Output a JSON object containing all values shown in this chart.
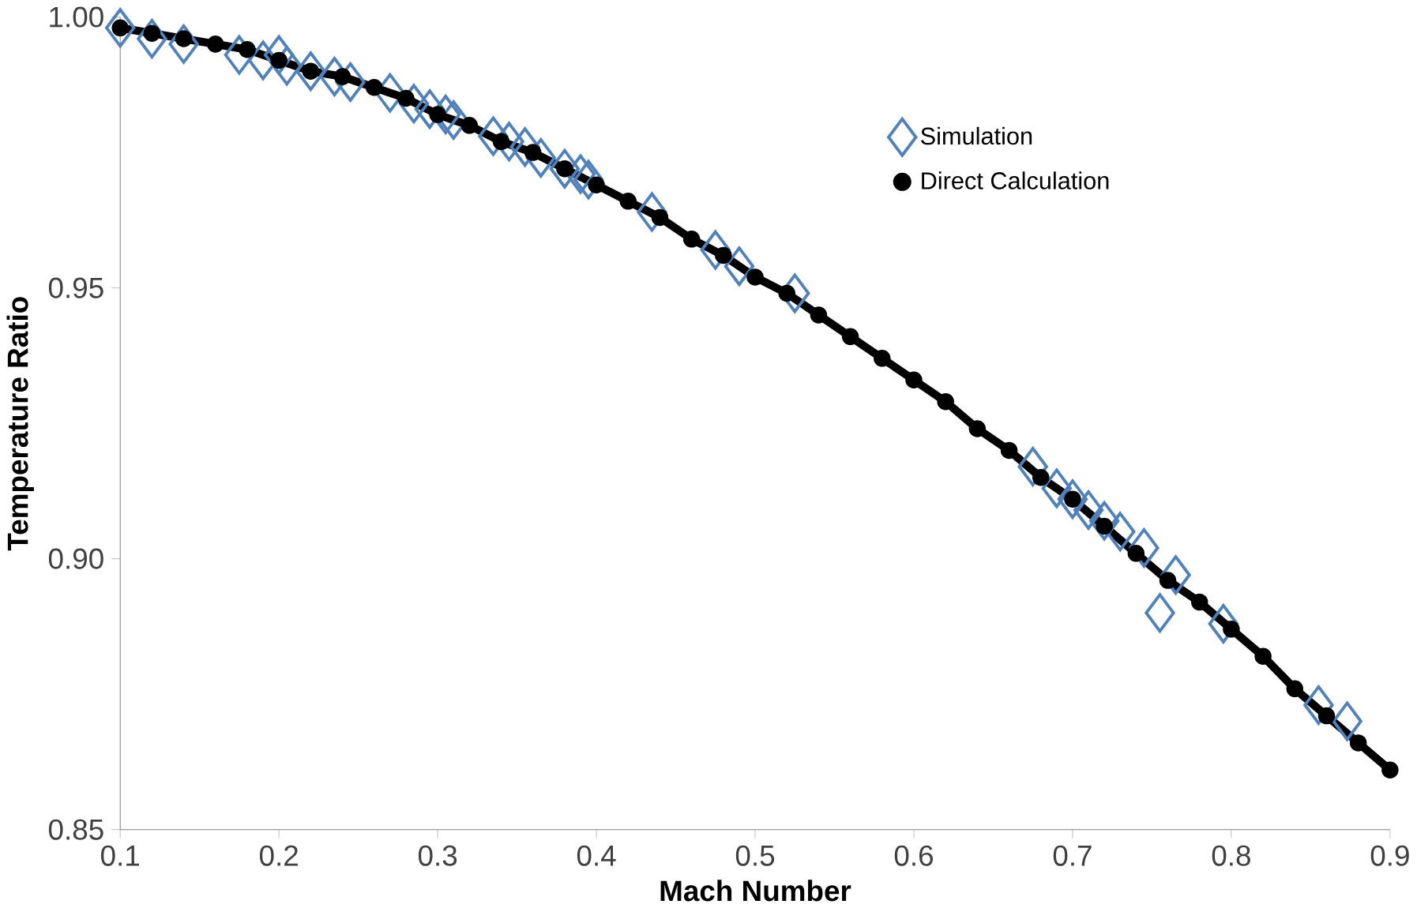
{
  "chart_data": {
    "type": "scatter",
    "xlabel": "Mach Number",
    "ylabel": "Temperature Ratio",
    "xlim": [
      0.1,
      0.9
    ],
    "ylim": [
      0.85,
      1.0
    ],
    "xticks": [
      0.1,
      0.2,
      0.3,
      0.4,
      0.5,
      0.6,
      0.7,
      0.8,
      0.9
    ],
    "yticks": [
      {
        "value": 0.85,
        "label": "0.85"
      },
      {
        "value": 0.9,
        "label": "0.90"
      },
      {
        "value": 0.95,
        "label": "0.95"
      },
      {
        "value": 1.0,
        "label": "1.00"
      }
    ],
    "grid": false,
    "legend": "top right",
    "series": [
      {
        "name": "Simulation",
        "color": "#4f81bd",
        "marker": "diamond",
        "x": [
          0.1,
          0.12,
          0.14,
          0.175,
          0.19,
          0.2,
          0.205,
          0.22,
          0.235,
          0.245,
          0.27,
          0.285,
          0.295,
          0.305,
          0.31,
          0.335,
          0.345,
          0.355,
          0.365,
          0.38,
          0.39,
          0.395,
          0.435,
          0.475,
          0.49,
          0.525,
          0.675,
          0.69,
          0.7,
          0.71,
          0.72,
          0.73,
          0.745,
          0.755,
          0.765,
          0.795,
          0.855,
          0.873
        ],
        "values": [
          0.998,
          0.996,
          0.995,
          0.993,
          0.992,
          0.993,
          0.991,
          0.99,
          0.989,
          0.988,
          0.986,
          0.984,
          0.983,
          0.982,
          0.981,
          0.978,
          0.977,
          0.976,
          0.974,
          0.972,
          0.971,
          0.97,
          0.964,
          0.957,
          0.954,
          0.949,
          0.917,
          0.913,
          0.911,
          0.909,
          0.907,
          0.905,
          0.902,
          0.89,
          0.897,
          0.888,
          0.873,
          0.87
        ]
      },
      {
        "name": "Direct Calculation",
        "type": "line",
        "color": "#000000",
        "marker": "circle",
        "x": [
          0.1,
          0.12,
          0.14,
          0.16,
          0.18,
          0.2,
          0.22,
          0.24,
          0.26,
          0.28,
          0.3,
          0.32,
          0.34,
          0.36,
          0.38,
          0.4,
          0.42,
          0.44,
          0.46,
          0.48,
          0.5,
          0.52,
          0.54,
          0.56,
          0.58,
          0.6,
          0.62,
          0.64,
          0.66,
          0.68,
          0.7,
          0.72,
          0.74,
          0.76,
          0.78,
          0.8,
          0.82,
          0.84,
          0.86,
          0.88,
          0.9
        ],
        "values": [
          0.998,
          0.997,
          0.996,
          0.995,
          0.994,
          0.992,
          0.99,
          0.989,
          0.987,
          0.985,
          0.982,
          0.98,
          0.977,
          0.975,
          0.972,
          0.969,
          0.966,
          0.963,
          0.959,
          0.956,
          0.952,
          0.949,
          0.945,
          0.941,
          0.937,
          0.933,
          0.929,
          0.924,
          0.92,
          0.915,
          0.911,
          0.906,
          0.901,
          0.896,
          0.892,
          0.887,
          0.882,
          0.876,
          0.871,
          0.866,
          0.861
        ]
      }
    ]
  }
}
